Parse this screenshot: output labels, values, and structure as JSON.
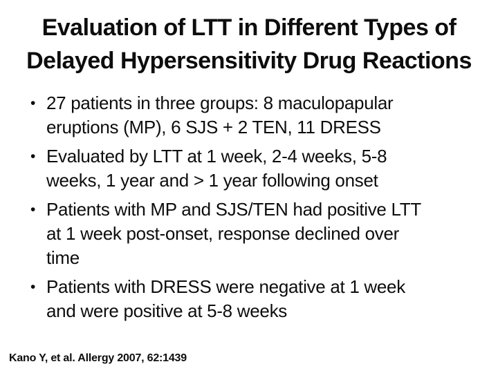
{
  "slide": {
    "title": {
      "line1": "Evaluation of LTT in Different Types of",
      "line2": "Delayed Hypersensitivity Drug Reactions"
    },
    "bullet_char": "•",
    "bullets": [
      {
        "lines": [
          "27 patients in three groups: 8 maculopapular",
          "eruptions (MP), 6 SJS + 2 TEN, 11 DRESS"
        ]
      },
      {
        "lines": [
          "Evaluated by LTT at 1 week, 2-4 weeks, 5-8",
          "weeks, 1 year and > 1 year following onset"
        ]
      },
      {
        "lines": [
          "Patients with MP and SJS/TEN had positive LTT",
          "at 1 week post-onset, response declined over",
          "time"
        ]
      },
      {
        "lines": [
          "Patients with DRESS were negative at 1 week",
          "and were positive at 5-8 weeks"
        ]
      }
    ],
    "citation": "Kano Y, et al. Allergy 2007, 62:1439",
    "colors": {
      "background": "#ffffff",
      "text": "#0d0d0d"
    }
  }
}
